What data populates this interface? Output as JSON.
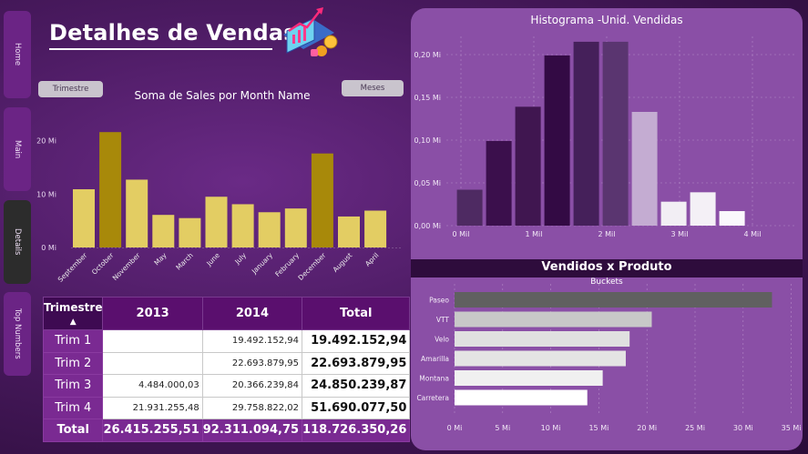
{
  "nav": [
    {
      "label": "Home"
    },
    {
      "label": "Main"
    },
    {
      "label": "Details"
    },
    {
      "label": "Top Numbers"
    }
  ],
  "header": {
    "title": "Detalhes de Vendas"
  },
  "buttons": {
    "trimestre": "Trimestre",
    "meses": "Meses"
  },
  "colors": {
    "bar_dark": "#a8890a",
    "bar_light": "#e3cd63",
    "panel": "#8a4fa6",
    "header_purple": "#5a0f6e"
  },
  "chart_data": [
    {
      "type": "bar",
      "title": "Soma de Sales por Month Name",
      "categories": [
        "September",
        "October",
        "November",
        "May",
        "March",
        "June",
        "July",
        "January",
        "February",
        "December",
        "August",
        "April"
      ],
      "values": [
        10.9,
        21.6,
        12.7,
        6.1,
        5.5,
        9.5,
        8.1,
        6.6,
        7.3,
        17.6,
        5.8,
        6.9
      ],
      "highlight": [
        "October",
        "December"
      ],
      "yticks": [
        "0 Mi",
        "10 Mi",
        "20 Mi"
      ],
      "ylim": [
        0,
        25
      ]
    },
    {
      "type": "bar",
      "title": "Histograma -Unid. Vendidas",
      "xlabel": "Buckets",
      "x": [
        0.12,
        0.52,
        0.92,
        1.32,
        1.72,
        2.12,
        2.52,
        2.92,
        3.32,
        3.72
      ],
      "values": [
        0.042,
        0.099,
        0.139,
        0.199,
        0.215,
        0.215,
        0.133,
        0.028,
        0.039,
        0.017
      ],
      "bar_colors": [
        "#4e2a62",
        "#3b0f4c",
        "#401650",
        "#330a44",
        "#45205a",
        "#5a3570",
        "#c4acd2",
        "#f2eef4",
        "#f4f0f6",
        "#faf8fc"
      ],
      "xticks": [
        "0 Mil",
        "1 Mil",
        "2 Mil",
        "3 Mil",
        "4 Mil"
      ],
      "yticks": [
        "0,00 Mi",
        "0,05 Mi",
        "0,10 Mi",
        "0,15 Mi",
        "0,20 Mi"
      ],
      "ylim": [
        0,
        0.23
      ]
    },
    {
      "type": "bar",
      "orientation": "horizontal",
      "title": "Vendidos x Produto",
      "categories": [
        "Paseo",
        "VTT",
        "Velo",
        "Amarilla",
        "Montana",
        "Carretera"
      ],
      "values": [
        33.0,
        20.5,
        18.2,
        17.8,
        15.4,
        13.8
      ],
      "bar_colors": [
        "#606060",
        "#c8c8c8",
        "#e0e0e0",
        "#e4e4e4",
        "#f0f0f0",
        "#ffffff"
      ],
      "xticks": [
        "0 Mi",
        "5 Mi",
        "10 Mi",
        "15 Mi",
        "20 Mi",
        "25 Mi",
        "30 Mi",
        "35 Mi"
      ],
      "xlim": [
        0,
        35
      ]
    }
  ],
  "table": {
    "headers": [
      "Trimestre",
      "2013",
      "2014",
      "Total"
    ],
    "rows": [
      {
        "label": "Trim 1",
        "y2013": "",
        "y2014": "19.492.152,94",
        "total": "19.492.152,94"
      },
      {
        "label": "Trim 2",
        "y2013": "",
        "y2014": "22.693.879,95",
        "total": "22.693.879,95"
      },
      {
        "label": "Trim 3",
        "y2013": "4.484.000,03",
        "y2014": "20.366.239,84",
        "total": "24.850.239,87"
      },
      {
        "label": "Trim 4",
        "y2013": "21.931.255,48",
        "y2014": "29.758.822,02",
        "total": "51.690.077,50"
      }
    ],
    "total": {
      "label": "Total",
      "y2013": "26.415.255,51",
      "y2014": "92.311.094,75",
      "total": "118.726.350,26"
    }
  }
}
